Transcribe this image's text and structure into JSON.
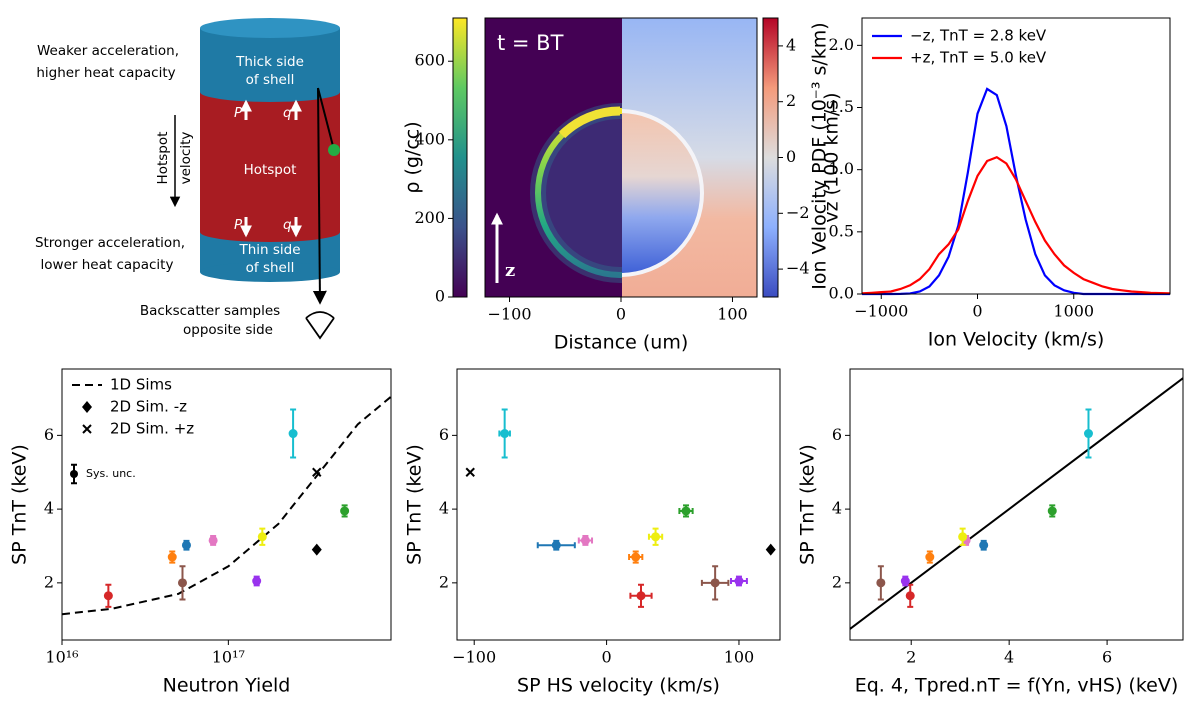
{
  "diagram": {
    "top_label": [
      "Weaker acceleration,",
      "higher heat capacity"
    ],
    "bottom_label": [
      "Stronger acceleration,",
      "lower heat capacity"
    ],
    "thick_side": [
      "Thick side",
      "of shell"
    ],
    "thin_side": [
      "Thin side",
      "of shell"
    ],
    "hotspot": "Hotspot",
    "velocity_label": [
      "Hotspot",
      "velocity"
    ],
    "pressure": "P",
    "heat": "q",
    "detector": [
      "Backscatter samples",
      "opposite side"
    ]
  },
  "chart_data": [
    {
      "type": "image",
      "annotation": "t = BT",
      "arrow_label": "z",
      "xlabel": "Distance (um)",
      "xlim": [
        -122,
        122
      ],
      "xticks": [
        {
          "value": -100,
          "label": "−100"
        },
        0,
        100
      ],
      "colorbars": [
        {
          "label": "ρ (g/cc)",
          "ylim": [
            0,
            710
          ],
          "yticks": [
            0,
            200,
            400,
            600
          ],
          "side": "left"
        },
        {
          "label": "vz (100 km/s)",
          "ylim": [
            -5,
            5
          ],
          "yticks": [
            {
              "value": -4,
              "label": "−4"
            },
            {
              "value": -2,
              "label": "−2"
            },
            0,
            2,
            4
          ],
          "side": "right"
        }
      ]
    },
    {
      "type": "line",
      "xlabel": "Ion Velocity (km/s)",
      "ylabel": "Ion Velocity PDF (10⁻³ s/km)",
      "xlim": [
        -1200,
        2000
      ],
      "ylim": [
        0,
        2.22
      ],
      "xticks": [
        {
          "value": -1000,
          "label": "−1000"
        },
        0,
        1000
      ],
      "yticks": [
        {
          "value": 0,
          "label": "0.0"
        },
        {
          "value": 0.5,
          "label": "0.5"
        },
        {
          "value": 1,
          "label": "1.0"
        },
        {
          "value": 1.5,
          "label": "1.5"
        },
        {
          "value": 2,
          "label": "2.0"
        }
      ],
      "legend": "upper left",
      "x": [
        -1200,
        -1100,
        -1000,
        -900,
        -800,
        -700,
        -600,
        -500,
        -400,
        -300,
        -200,
        -100,
        0,
        100,
        200,
        300,
        400,
        500,
        600,
        700,
        800,
        900,
        1000,
        1100,
        1200,
        1300,
        1400,
        1500,
        1600,
        1700,
        1800,
        1900,
        2000
      ],
      "series": [
        {
          "name": "−z, TnT = 2.8 keV",
          "color": "#0000ff",
          "values": [
            0,
            0,
            0,
            0,
            0.001,
            0.004,
            0.02,
            0.06,
            0.15,
            0.3,
            0.55,
            0.98,
            1.45,
            1.65,
            1.6,
            1.35,
            0.95,
            0.6,
            0.32,
            0.15,
            0.07,
            0.03,
            0.01,
            0,
            0,
            0,
            0,
            0,
            0,
            0,
            0,
            0,
            0
          ]
        },
        {
          "name": "+z, TnT = 5.0 keV",
          "color": "#ff0000",
          "values": [
            0.005,
            0.01,
            0.015,
            0.02,
            0.04,
            0.07,
            0.12,
            0.2,
            0.32,
            0.4,
            0.52,
            0.75,
            0.95,
            1.07,
            1.1,
            1.05,
            0.92,
            0.75,
            0.58,
            0.43,
            0.32,
            0.23,
            0.17,
            0.12,
            0.09,
            0.06,
            0.04,
            0.03,
            0.02,
            0.015,
            0.01,
            0.007,
            0.005
          ]
        }
      ]
    },
    {
      "type": "scatter",
      "xlabel": "Neutron Yield",
      "ylabel": "SP TnT (keV)",
      "xscale": "log",
      "xlim": [
        1e+16,
        9.5e+17
      ],
      "ylim": [
        0.45,
        7.8
      ],
      "xticks": [
        {
          "value": 1e+16,
          "label": "10¹⁶"
        },
        {
          "value": 1e+17,
          "label": "10¹⁷"
        }
      ],
      "yticks": [
        2,
        4,
        6
      ],
      "legend": "upper left",
      "sys_unc": {
        "label": "Sys. unc.",
        "error": 0.25
      },
      "series": [
        {
          "name": "1D Sims",
          "style": "dashed",
          "color": "#000000",
          "x": [
            1e+16,
            2e+16,
            5e+16,
            1e+17,
            2e+17,
            4e+17,
            6e+17,
            9.5e+17
          ],
          "values": [
            1.15,
            1.3,
            1.7,
            2.45,
            3.6,
            5.3,
            6.3,
            7.05
          ]
        },
        {
          "name": "2D Sim. -z",
          "marker": "diamond",
          "color": "#000000",
          "x": [
            3.4e+17
          ],
          "values": [
            2.9
          ]
        },
        {
          "name": "2D Sim. +z",
          "marker": "x",
          "color": "#000000",
          "x": [
            3.4e+17
          ],
          "values": [
            5.0
          ]
        },
        {
          "marker": "circle",
          "colors": [
            "#d62728",
            "#ff7f0e",
            "#1f77b4",
            "#8c564b",
            "#e377c2",
            "#9933ee",
            "#eeee11",
            "#17becf",
            "#2ca02c"
          ],
          "x": [
            1.9e+16,
            4.6e+16,
            5.6e+16,
            5.3e+16,
            8.1e+16,
            1.48e+17,
            1.6e+17,
            2.45e+17,
            5e+17
          ],
          "values": [
            1.65,
            2.7,
            3.02,
            2.0,
            3.15,
            2.05,
            3.25,
            6.05,
            3.95
          ],
          "errors": [
            0.3,
            0.15,
            0.12,
            0.45,
            0.12,
            0.12,
            0.22,
            0.65,
            0.15
          ]
        }
      ]
    },
    {
      "type": "scatter",
      "xlabel": "SP HS velocity (km/s)",
      "ylabel": "SP TnT (keV)",
      "xlim": [
        -113,
        131
      ],
      "ylim": [
        0.45,
        7.8
      ],
      "xticks": [
        {
          "value": -100,
          "label": "−100"
        },
        0,
        100
      ],
      "yticks": [
        2,
        4,
        6
      ],
      "series": [
        {
          "marker": "diamond",
          "color": "#000000",
          "x": [
            124
          ],
          "values": [
            2.9
          ]
        },
        {
          "marker": "x",
          "color": "#000000",
          "x": [
            -103
          ],
          "values": [
            5.0
          ]
        },
        {
          "marker": "circle",
          "colors": [
            "#d62728",
            "#ff7f0e",
            "#1f77b4",
            "#8c564b",
            "#e377c2",
            "#9933ee",
            "#eeee11",
            "#17becf",
            "#2ca02c"
          ],
          "x": [
            26,
            22,
            -38,
            82,
            -16,
            100,
            37,
            -77,
            60
          ],
          "x_errors": [
            8,
            5,
            14,
            10,
            5,
            6,
            5,
            4,
            5
          ],
          "values": [
            1.65,
            2.7,
            3.02,
            2.0,
            3.15,
            2.05,
            3.25,
            6.05,
            3.95
          ],
          "errors": [
            0.3,
            0.15,
            0.12,
            0.45,
            0.12,
            0.12,
            0.22,
            0.65,
            0.15
          ]
        }
      ]
    },
    {
      "type": "scatter",
      "xlabel": "Eq. 4, Tpred.nT = f(Yn, vHS) (keV)",
      "ylabel": "SP TnT (keV)",
      "xlim": [
        0.75,
        7.55
      ],
      "ylim": [
        0.45,
        7.8
      ],
      "xticks": [
        2,
        4,
        6
      ],
      "yticks": [
        2,
        4,
        6
      ],
      "series": [
        {
          "style": "solid",
          "color": "#000000",
          "x": [
            0.75,
            7.55
          ],
          "values": [
            0.75,
            7.55
          ]
        },
        {
          "marker": "circle",
          "colors": [
            "#d62728",
            "#ff7f0e",
            "#1f77b4",
            "#8c564b",
            "#e377c2",
            "#9933ee",
            "#eeee11",
            "#17becf",
            "#2ca02c"
          ],
          "x": [
            1.98,
            2.38,
            3.48,
            1.38,
            3.12,
            1.88,
            3.05,
            5.62,
            4.88
          ],
          "values": [
            1.65,
            2.7,
            3.02,
            2.0,
            3.15,
            2.05,
            3.25,
            6.05,
            3.95
          ],
          "errors": [
            0.3,
            0.15,
            0.12,
            0.45,
            0.12,
            0.12,
            0.22,
            0.65,
            0.15
          ]
        }
      ]
    }
  ]
}
